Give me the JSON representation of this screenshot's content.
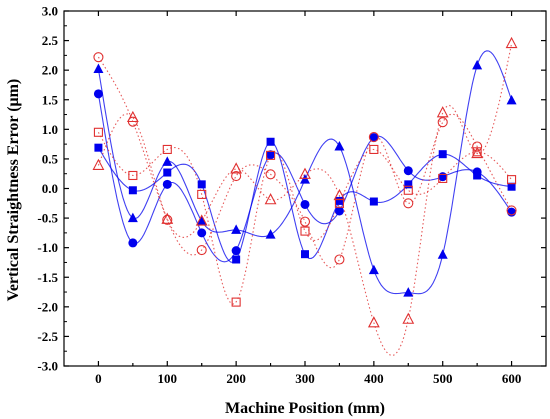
{
  "chart_data": {
    "type": "scatter",
    "xlabel": "Machine Position (mm)",
    "ylabel": "Vertical Straightness Error (μm)",
    "xlim": [
      -50,
      650
    ],
    "ylim": [
      -3.0,
      3.0
    ],
    "x_ticks": [
      0,
      100,
      200,
      300,
      400,
      500,
      600
    ],
    "y_ticks": [
      -3.0,
      -2.5,
      -2.0,
      -1.5,
      -1.0,
      -0.5,
      0.0,
      0.5,
      1.0,
      1.5,
      2.0,
      2.5,
      3.0
    ],
    "x_tick_labels": [
      "0",
      "100",
      "200",
      "300",
      "400",
      "500",
      "600"
    ],
    "y_tick_labels": [
      "-3.0",
      "-2.5",
      "-2.0",
      "-1.5",
      "-1.0",
      "-0.5",
      "0.0",
      "0.5",
      "1.0",
      "1.5",
      "2.0",
      "2.5",
      "3.0"
    ],
    "grid": false,
    "x": [
      0,
      50,
      100,
      150,
      200,
      250,
      300,
      350,
      400,
      450,
      500,
      550,
      600
    ],
    "series": [
      {
        "marker": "square",
        "filled": true,
        "color": "#0000ee",
        "fit": "solid",
        "values": [
          0.69,
          -0.03,
          0.27,
          0.07,
          -1.2,
          0.79,
          -1.11,
          -0.21,
          -0.22,
          0.07,
          0.58,
          0.22,
          0.03
        ]
      },
      {
        "marker": "circle",
        "filled": true,
        "color": "#0000ee",
        "fit": "solid",
        "values": [
          1.6,
          -0.92,
          0.07,
          -0.75,
          -1.05,
          0.57,
          -0.27,
          -0.38,
          0.86,
          0.3,
          0.2,
          0.28,
          -0.4
        ]
      },
      {
        "marker": "triangle",
        "filled": true,
        "color": "#0000ee",
        "fit": "solid",
        "values": [
          2.02,
          -0.5,
          0.45,
          -0.55,
          -0.7,
          -0.78,
          0.15,
          0.71,
          -1.38,
          -1.76,
          -1.12,
          2.08,
          1.49
        ]
      },
      {
        "marker": "square",
        "filled": false,
        "color": "#e03030",
        "fit": "dotted",
        "values": [
          0.95,
          0.22,
          0.66,
          -0.1,
          -1.92,
          0.56,
          -0.72,
          -0.25,
          0.66,
          -0.03,
          0.17,
          0.62,
          0.15
        ]
      },
      {
        "marker": "circle",
        "filled": false,
        "color": "#e03030",
        "fit": "dotted",
        "values": [
          2.22,
          1.13,
          -0.53,
          -1.04,
          0.21,
          0.24,
          -0.56,
          -1.2,
          0.87,
          -0.25,
          1.12,
          0.71,
          -0.37
        ]
      },
      {
        "marker": "triangle",
        "filled": false,
        "color": "#e03030",
        "fit": "dotted",
        "values": [
          0.39,
          1.2,
          -0.52,
          -0.55,
          0.33,
          -0.19,
          0.24,
          -0.12,
          -2.27,
          -2.21,
          1.28,
          0.59,
          2.45
        ]
      }
    ]
  }
}
